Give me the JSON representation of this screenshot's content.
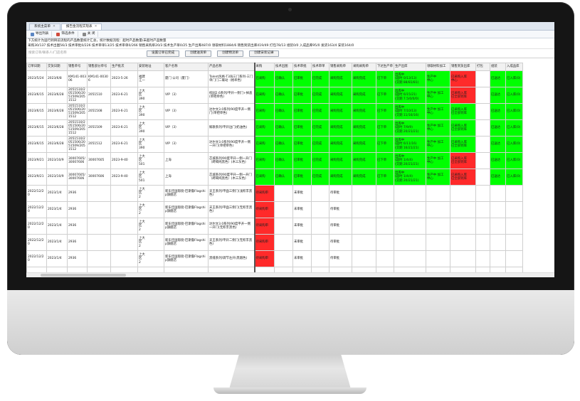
{
  "tabs": [
    {
      "label": "系统主菜单",
      "active": false
    },
    {
      "label": "报告金流程实现表",
      "active": true
    }
  ],
  "toolbar": [
    {
      "label": "导出列表",
      "icon": "export-icon"
    },
    {
      "label": "筛选条件",
      "icon": "filter-icon"
    },
    {
      "label": "关 闭",
      "icon": "close-icon"
    }
  ],
  "info_text": "下方统计为运行到目前流程的产品数量统计汇总，统计数据流程：超时产品数量/未超时产品数量",
  "stats_text": "采购30/137  技术出图56/3  技术审批0/226  技术审单13/25  技术审单0/266  销售采购单20/3  技术生产单0/25  生产出库487/0  领取材料1884/6  销售到货出库419/49  打包78/13  组装0/0  入成品库95/0  发货163/4  安装164/0",
  "search_placeholder": "搜索订单/联系人/门店名称",
  "buttons": [
    "设置订单已完成",
    "创建送货单",
    "创建物流单",
    "创建安装记录"
  ],
  "columns_left": [
    "订单日期",
    "交货日期",
    "销售单号",
    "销售部分单号",
    "生产批次",
    "安装地址",
    "客户名称",
    "产品名称"
  ],
  "columns_right": [
    "采购",
    "技术出图",
    "技术审批",
    "技术审单",
    "销售采购单",
    "采购采购单",
    "下达生产单",
    "生产出库",
    "领取材料加工",
    "销售到货出库",
    "打包",
    "组装",
    "入成品库"
  ],
  "rows": [
    {
      "date": "2023/5/24",
      "delivery": "2023/6/8",
      "order": "KM141-00306",
      "sub": "KM141-00306",
      "batch": "2023-5-26",
      "addr": "福建\n江一",
      "customer": "厦门          公司（厦门）",
      "product": "Talent风格-T3海三门系列-三门单门门二联动（格率色）",
      "cells": [
        "已采购",
        "已确认",
        "已审批",
        "已完成",
        "采购完成",
        "采购完成",
        "已下单",
        "出库中\n(超时 0/13/13)\n(交期 88/81/81)",
        "生产中\n中心",
        "已采购入库\n中心",
        "",
        "已送达",
        "已入库(0)"
      ],
      "colors": [
        "g",
        "g",
        "g",
        "g",
        "g",
        "g",
        "g",
        "g",
        "g",
        "r",
        "",
        "g",
        "g"
      ]
    },
    {
      "date": "2023/6/15",
      "delivery": "2023/6/28",
      "order": "2051510/2\n051506/20\n51509/205\n1512",
      "sub": "2051510",
      "batch": "2023-6-21",
      "addr": "上大\n区\n390",
      "customer": "VIP（3）",
      "product": "校园2.6系列/平开一侧门+掉盖(单把单色)",
      "cells": [
        "已采购",
        "已确认",
        "已审批",
        "已完成",
        "采购完成",
        "采购完成",
        "已下单",
        "出库中\n(超时 6/15/21)\n(交期 7.5/0/0/0)",
        "生产中 加工\n中心",
        "已采购入库\n已全部到库",
        "",
        "已送达",
        "已入库(0)"
      ],
      "colors": [
        "g",
        "g",
        "g",
        "g",
        "g",
        "g",
        "g",
        "g",
        "g",
        "r",
        "",
        "g",
        "g"
      ]
    },
    {
      "date": "2023/6/15",
      "delivery": "2023/6/28",
      "order": "2051510/2\n051506/20\n51509/205\n1512",
      "sub": "2051508",
      "batch": "2023-6-21",
      "addr": "上大\n区\n390",
      "customer": "VIP（3）",
      "product": "达尔文3.0系列/90度平开一侧门(单把单色)",
      "cells": [
        "已采购",
        "已确认",
        "已审批",
        "已完成",
        "采购完成",
        "采购完成",
        "已下单",
        "出库中\n(超时 7/10/13)\n(交期 11/16/16)",
        "生产中 加工\n中心",
        "已采购入库\n已全部到库",
        "",
        "已送达",
        "已入库(0)"
      ],
      "colors": [
        "g",
        "g",
        "g",
        "g",
        "g",
        "g",
        "g",
        "g",
        "g",
        "g",
        "",
        "g",
        "g"
      ]
    },
    {
      "date": "2023/6/15",
      "delivery": "2023/6/28",
      "order": "2051510/2\n051506/20\n51509/205\n1512",
      "sub": "2051509",
      "batch": "2023-6-21",
      "addr": "上大\n区\n390",
      "customer": "VIP（3）",
      "product": "鲸歌系列/平开边门(奶油色)",
      "cells": [
        "已采购",
        "已确认",
        "已审批",
        "已完成",
        "采购完成",
        "采购完成",
        "已下单",
        "出库中\n(超时 7/9/9)\n(交期 20/21/21)",
        "生产中 加工\n中心",
        "已采购入库\n已全部到库",
        "",
        "已送达",
        "已入库(0)"
      ],
      "colors": [
        "g",
        "g",
        "g",
        "g",
        "g",
        "g",
        "g",
        "g",
        "g",
        "g",
        "",
        "g",
        "g"
      ]
    },
    {
      "date": "2023/6/15",
      "delivery": "2023/6/28",
      "order": "2051510/2\n051506/20\n51509/205\n1512",
      "sub": "2051512",
      "batch": "2023-6-21",
      "addr": "上大\n区\n390",
      "customer": "VIP（3）",
      "product": "达尔文3.0系列/90度平开一侧一开门(单把单色)",
      "cells": [
        "已采购",
        "已确认",
        "已审批",
        "已完成",
        "采购完成",
        "采购完成",
        "已下单",
        "出库中\n(超时 6/11/16)\n(交期 16/21/21)",
        "生产中 加工\n中心",
        "已采购入库\n已全部到库",
        "",
        "已送达",
        "已入库(0)"
      ],
      "colors": [
        "g",
        "g",
        "g",
        "g",
        "g",
        "g",
        "g",
        "g",
        "g",
        "g",
        "",
        "g",
        "g"
      ]
    },
    {
      "date": "2023/9/21",
      "delivery": "2023/10/9",
      "order": "30007605/\n30007606",
      "sub": "30007605",
      "batch": "2023-9-40",
      "addr": "上大\n区\n501",
      "customer": "上海",
      "product": "芯城系列/90度平开一侧一开门（砖褐纯黑色）(木三灰色)",
      "cells": [
        "已采购",
        "已确认",
        "已审批",
        "已完成",
        "采购完成",
        "采购完成",
        "已下单",
        "出库中\n(超时 1/4/4)\n(交期 20/21/21)",
        "生产中 加工\n中心",
        "已采购入库\n已全部到库",
        "",
        "已送达",
        "已入库(0)"
      ],
      "colors": [
        "g",
        "g",
        "g",
        "g",
        "g",
        "g",
        "g",
        "g",
        "g",
        "r",
        "",
        "g",
        "g"
      ]
    },
    {
      "date": "2023/9/21",
      "delivery": "2023/10/9",
      "order": "30007605/\n30007606",
      "sub": "30007606",
      "batch": "2023-9-40",
      "addr": "上大\n区\n501",
      "customer": "上海",
      "product": "芯城系列/90度平开一侧一开门（砖褐纯黑色）(木三灰色)",
      "cells": [
        "已采购",
        "已确认",
        "已审批",
        "已完成",
        "采购完成",
        "采购完成",
        "已下单",
        "出库中\n(超时 1/4/4)\n(交期 20/21/21)",
        "生产中 加工\n中心",
        "已采购入库\n已全部到库",
        "",
        "已送达",
        "已入库(0)"
      ],
      "colors": [
        "g",
        "g",
        "g",
        "g",
        "g",
        "g",
        "g",
        "g",
        "g",
        "r",
        "",
        "g",
        "g"
      ]
    },
    {
      "date": "2022/12/20",
      "delivery": "2023/1/4",
      "order": "2936",
      "sub": "",
      "batch": "",
      "addr": "上大\n区\n2",
      "customer": "新东佳国际街-巴斯鲁Flagship旗舰店",
      "product": "天王系列/平面三侧门(浅积丰黑色)",
      "cells": [
        "待采购审",
        "",
        "未审批",
        "",
        "待审批",
        "",
        "",
        "",
        "",
        "",
        "",
        "",
        ""
      ],
      "colors": [
        "r",
        "",
        "",
        "",
        "",
        "",
        "",
        "",
        "",
        "",
        "",
        "",
        ""
      ]
    },
    {
      "date": "2022/12/20",
      "delivery": "2023/1/4",
      "order": "2936",
      "sub": "",
      "batch": "",
      "addr": "上大\n区\n2",
      "customer": "新东佳国际街-巴斯鲁Flagship旗舰店",
      "product": "天王系列/平面三侧门(无积丰黑色)",
      "cells": [
        "待采购审",
        "",
        "未审批",
        "",
        "待审批",
        "",
        "",
        "",
        "",
        "",
        "",
        "",
        ""
      ],
      "colors": [
        "r",
        "",
        "",
        "",
        "",
        "",
        "",
        "",
        "",
        "",
        "",
        "",
        ""
      ]
    },
    {
      "date": "2022/12/20",
      "delivery": "2023/1/4",
      "order": "2936",
      "sub": "",
      "batch": "",
      "addr": "上大\n区\n2",
      "customer": "新东佳国际街-巴斯鲁Flagship旗舰店",
      "product": "达尔文3.0系列/90度平开一侧一开门(无积丰黑色)",
      "cells": [
        "待采购审",
        "",
        "未审批",
        "",
        "待审批",
        "",
        "",
        "",
        "",
        "",
        "",
        "",
        ""
      ],
      "colors": [
        "r",
        "",
        "",
        "",
        "",
        "",
        "",
        "",
        "",
        "",
        "",
        "",
        ""
      ]
    },
    {
      "date": "2022/12/20",
      "delivery": "2023/1/4",
      "order": "2936",
      "sub": "",
      "batch": "",
      "addr": "上大\n区\n2",
      "customer": "新东佳国际街-巴斯鲁Flagship旗舰店",
      "product": "天王系列/平开二侧门(无积丰黑色)",
      "cells": [
        "待采购审",
        "",
        "未审批",
        "",
        "待审批",
        "",
        "",
        "",
        "",
        "",
        "",
        "",
        ""
      ],
      "colors": [
        "r",
        "",
        "",
        "",
        "",
        "",
        "",
        "",
        "",
        "",
        "",
        "",
        ""
      ]
    },
    {
      "date": "2022/12/20",
      "delivery": "2023/1/4",
      "order": "2936",
      "sub": "",
      "batch": "",
      "addr": "上大\n区\n2",
      "customer": "新东佳国际街-巴斯鲁Flagship旗舰店",
      "product": "黑缝系列/调节左开(黑烟色)",
      "cells": [
        "待采购审",
        "",
        "未审批",
        "",
        "待审批",
        "",
        "",
        "",
        "",
        "",
        "",
        "",
        ""
      ],
      "colors": [
        "r",
        "",
        "",
        "",
        "",
        "",
        "",
        "",
        "",
        "",
        "",
        "",
        ""
      ]
    }
  ],
  "colors": {
    "green": "#00ff00",
    "red": "#ff2a2a",
    "monitor": "#151515"
  }
}
